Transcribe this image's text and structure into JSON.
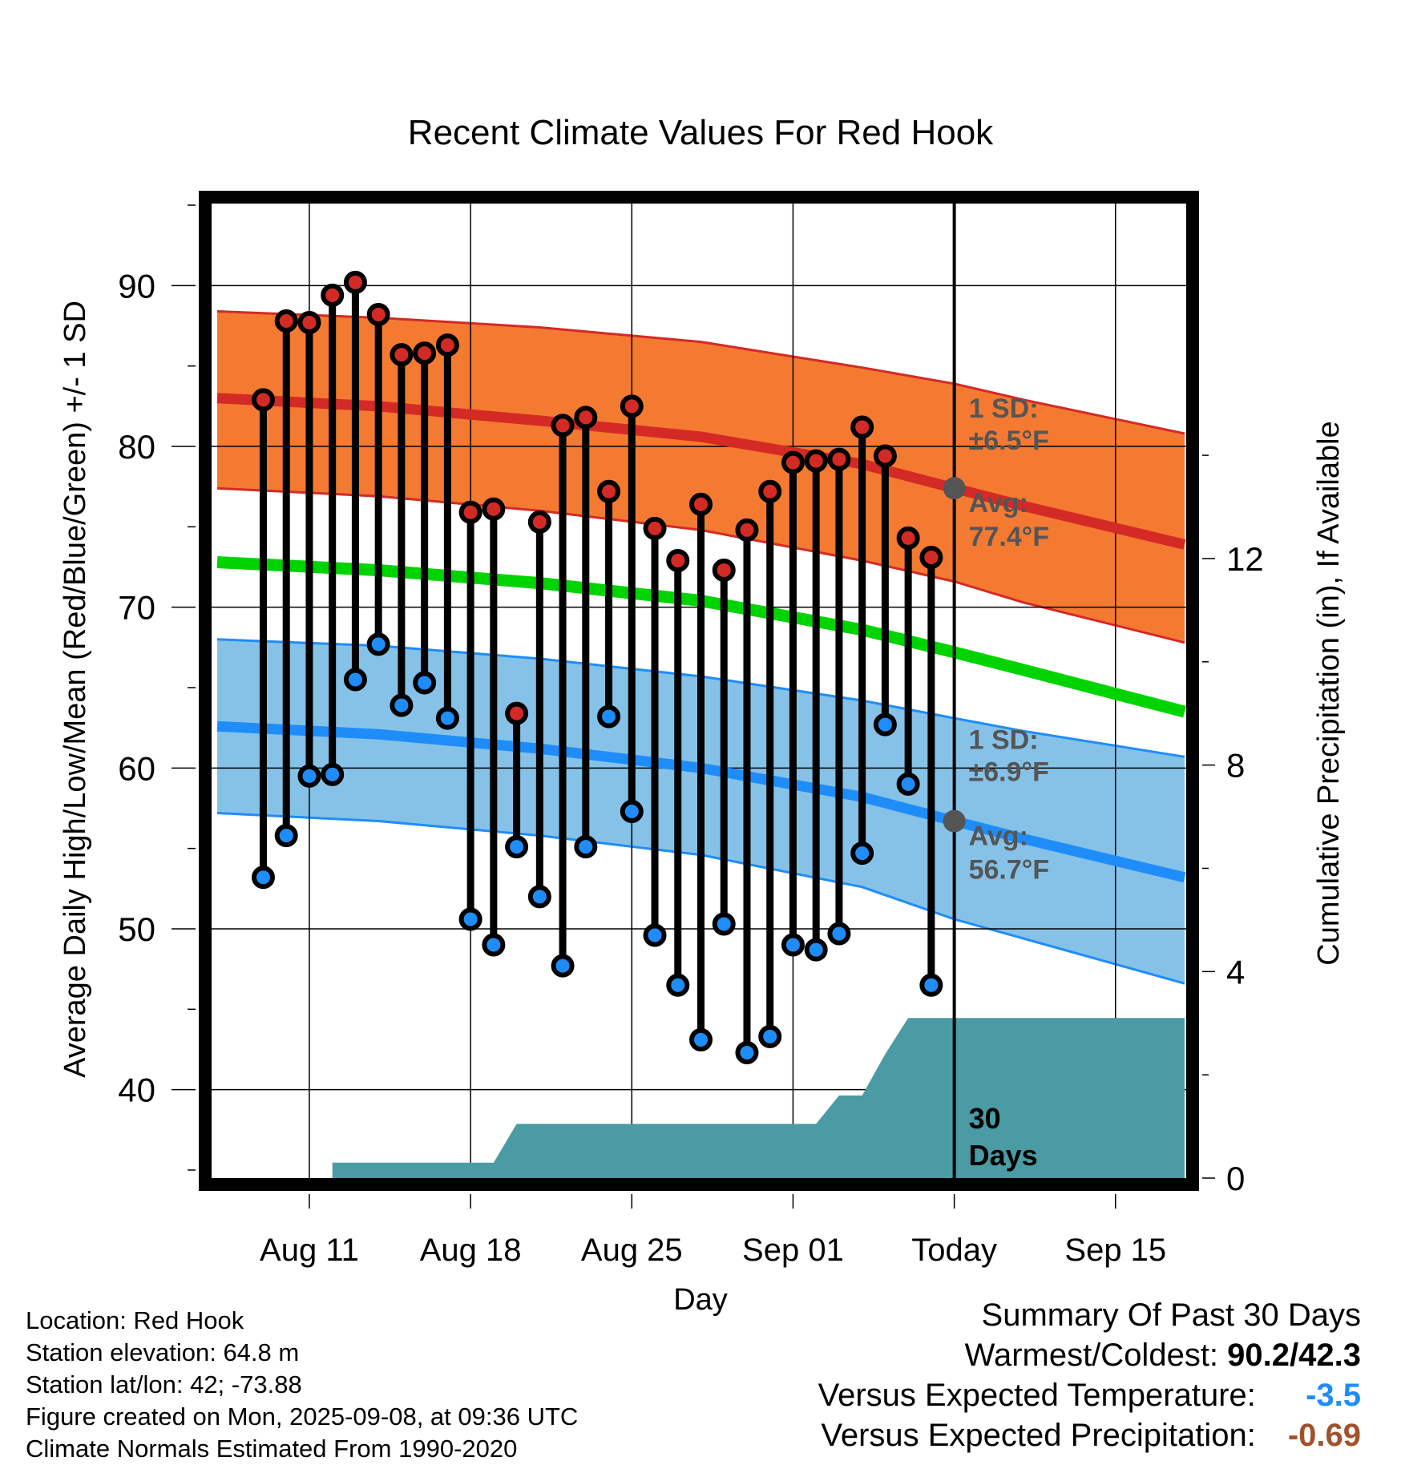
{
  "chart_data": {
    "type": "line",
    "title": "Recent Climate Values For Red Hook",
    "xlabel": "Day",
    "ylabel": "Average Daily High/Low/Mean (Red/Blue/Green) +/- 1 SD",
    "y2label": "Cumulative Precipitation (in), If Available",
    "ylim": [
      34.5,
      95.5
    ],
    "y2lim": [
      0,
      19.0
    ],
    "xlim": [
      "2025-08-07",
      "2025-09-18"
    ],
    "yticks": [
      "40",
      "50",
      "60",
      "70",
      "80",
      "90"
    ],
    "y2ticks": [
      "0",
      "4",
      "8",
      "12"
    ],
    "xticks": [
      {
        "date": "2025-08-11",
        "label": "Aug 11"
      },
      {
        "date": "2025-08-18",
        "label": "Aug 18"
      },
      {
        "date": "2025-08-25",
        "label": "Aug 25"
      },
      {
        "date": "2025-09-01",
        "label": "Sep 01"
      },
      {
        "date": "2025-09-08",
        "label": "Today"
      },
      {
        "date": "2025-09-15",
        "label": "Sep 15"
      }
    ],
    "grid": true,
    "today": "2025-09-08",
    "normals": {
      "dates": [
        "2025-08-07",
        "2025-08-14",
        "2025-08-21",
        "2025-08-28",
        "2025-09-04",
        "2025-09-08",
        "2025-09-11",
        "2025-09-18"
      ],
      "high_avg": [
        83.0,
        82.5,
        81.6,
        80.6,
        78.9,
        77.4,
        76.3,
        73.9
      ],
      "high_upper": [
        88.4,
        88.0,
        87.4,
        86.5,
        84.9,
        83.9,
        82.9,
        80.8
      ],
      "high_lower": [
        77.4,
        76.9,
        76.0,
        74.8,
        72.9,
        71.6,
        70.3,
        67.8
      ],
      "low_avg": [
        62.6,
        62.1,
        61.2,
        60.0,
        58.2,
        56.7,
        55.6,
        53.2
      ],
      "low_upper": [
        68.0,
        67.6,
        66.8,
        65.7,
        64.2,
        63.1,
        62.3,
        60.7
      ],
      "low_lower": [
        57.2,
        56.7,
        55.8,
        54.6,
        52.6,
        50.6,
        49.4,
        46.6
      ],
      "mean": [
        72.8,
        72.3,
        71.5,
        70.4,
        68.6,
        67.2,
        66.1,
        63.5
      ]
    },
    "series": [
      {
        "name": "High",
        "x": [
          "2025-08-09",
          "2025-08-10",
          "2025-08-11",
          "2025-08-12",
          "2025-08-13",
          "2025-08-14",
          "2025-08-15",
          "2025-08-16",
          "2025-08-17",
          "2025-08-18",
          "2025-08-19",
          "2025-08-20",
          "2025-08-21",
          "2025-08-22",
          "2025-08-23",
          "2025-08-24",
          "2025-08-25",
          "2025-08-26",
          "2025-08-27",
          "2025-08-28",
          "2025-08-29",
          "2025-08-30",
          "2025-08-31",
          "2025-09-01",
          "2025-09-02",
          "2025-09-03",
          "2025-09-04",
          "2025-09-05",
          "2025-09-06",
          "2025-09-07"
        ],
        "values": [
          82.9,
          87.8,
          87.7,
          89.4,
          90.2,
          88.2,
          85.7,
          85.8,
          86.3,
          75.9,
          76.1,
          63.4,
          75.3,
          81.3,
          81.8,
          77.2,
          82.5,
          74.9,
          72.9,
          76.4,
          72.3,
          74.8,
          77.2,
          79.0,
          79.1,
          79.2,
          81.2,
          79.4,
          74.3,
          73.1
        ]
      },
      {
        "name": "Low",
        "x": [
          "2025-08-09",
          "2025-08-10",
          "2025-08-11",
          "2025-08-12",
          "2025-08-13",
          "2025-08-14",
          "2025-08-15",
          "2025-08-16",
          "2025-08-17",
          "2025-08-18",
          "2025-08-19",
          "2025-08-20",
          "2025-08-21",
          "2025-08-22",
          "2025-08-23",
          "2025-08-24",
          "2025-08-25",
          "2025-08-26",
          "2025-08-27",
          "2025-08-28",
          "2025-08-29",
          "2025-08-30",
          "2025-08-31",
          "2025-09-01",
          "2025-09-02",
          "2025-09-03",
          "2025-09-04",
          "2025-09-05",
          "2025-09-06",
          "2025-09-07"
        ],
        "values": [
          53.2,
          55.8,
          59.5,
          59.6,
          65.5,
          67.7,
          63.9,
          65.3,
          63.1,
          50.6,
          49.0,
          55.1,
          52.0,
          47.7,
          55.1,
          63.2,
          57.3,
          49.6,
          46.5,
          43.1,
          50.3,
          42.3,
          43.3,
          49.0,
          48.7,
          49.7,
          54.7,
          62.7,
          59.0,
          46.5
        ]
      }
    ],
    "precipitation": {
      "x": [
        "2025-08-07",
        "2025-08-12",
        "2025-08-12",
        "2025-08-19",
        "2025-08-20",
        "2025-09-02",
        "2025-09-03",
        "2025-09-04",
        "2025-09-05",
        "2025-09-06",
        "2025-09-18"
      ],
      "values": [
        0,
        0,
        0.3,
        0.3,
        1.05,
        1.05,
        1.6,
        1.6,
        2.4,
        3.1,
        3.1
      ]
    },
    "annotations": {
      "high_sd_label": "1 SD:",
      "high_sd_value": "±6.5°F",
      "high_avg_label": "Avg:",
      "high_avg_value": "77.4°F",
      "low_sd_label": "1 SD:",
      "low_sd_value": "±6.9°F",
      "low_avg_label": "Avg:",
      "low_avg_value": "56.7°F",
      "days_count": "30",
      "days_word": "Days"
    },
    "colors": {
      "high_band": "#f47a32",
      "high_line": "#d42a25",
      "low_band": "#86c2e8",
      "low_line": "#1e8dfa",
      "mean_line": "#00d400",
      "precip": "#4a9ba3",
      "high_marker": "#d42a25",
      "low_marker": "#1e8dfa",
      "annotation": "#555555"
    }
  },
  "info": {
    "location": "Location: Red Hook",
    "elevation": "Station elevation: 64.8 m",
    "latlon": "Station lat/lon: 42; -73.88",
    "created": "Figure created on Mon, 2025-09-08, at 09:36 UTC",
    "normals": "Climate Normals Estimated From 1990-2020"
  },
  "summary": {
    "title": "Summary Of Past 30 Days",
    "warm_cold_label": "Warmest/Coldest:",
    "warm_cold_value": "90.2/42.3",
    "temp_label": "Versus Expected Temperature:",
    "temp_value": "-3.5",
    "temp_color": "#1e8dfa",
    "precip_label": "Versus Expected Precipitation:",
    "precip_value": "-0.69",
    "precip_color": "#a0522d"
  }
}
